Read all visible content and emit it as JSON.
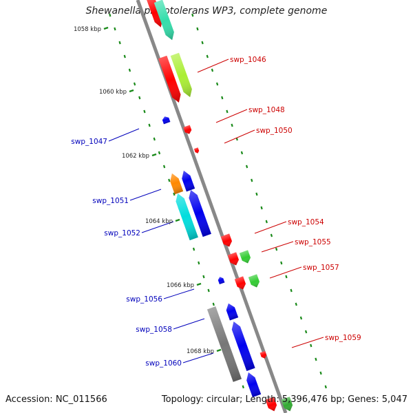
{
  "title": "Shewanella piezotolerans WP3, complete genome",
  "footer": {
    "accession": "Accession: NC_011566",
    "summary": "Topology: circular; Length: 5,396,476 bp; Genes: 5,047"
  },
  "colors": {
    "backbone": "#888888",
    "tick": "#1a8a1a",
    "label_forward": "#cc0000",
    "label_reverse": "#0000bb"
  },
  "kbp_labels": [
    "1058 kbp",
    "1060 kbp",
    "1062 kbp",
    "1064 kbp",
    "1066 kbp",
    "1068 kbp"
  ],
  "gene_labels": {
    "forward": [
      "swp_1046",
      "swp_1048",
      "swp_1050",
      "swp_1054",
      "swp_1055",
      "swp_1057",
      "swp_1059"
    ],
    "reverse": [
      "swp_1047",
      "swp_1051",
      "swp_1052",
      "swp_1056",
      "swp_1058",
      "swp_1060"
    ]
  }
}
